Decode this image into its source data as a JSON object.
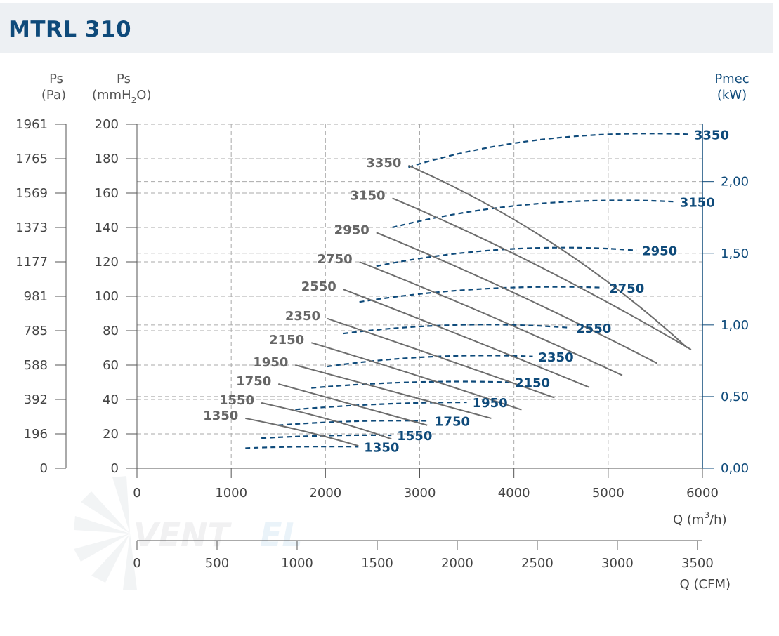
{
  "title": "MTRL 310",
  "axes": {
    "pa_label": "Ps",
    "pa_unit": "(Pa)",
    "mm_label": "Ps",
    "mm_unit_pre": "(mmH",
    "mm_unit_sub": "2",
    "mm_unit_post": "O)",
    "pmec_label": "Pmec",
    "pmec_unit": "(kW)",
    "q_m3h_label": "Q (m",
    "q_m3h_sup": "3",
    "q_m3h_post": "/h)",
    "q_cfm_label": "Q (CFM)"
  },
  "colors": {
    "pressure": "#6d6d6d",
    "power": "#0e4a7a",
    "grid": "#aaaaaa",
    "axis": "#0e4a7a"
  },
  "chart_data": {
    "type": "line",
    "title": "MTRL 310",
    "x_axis": {
      "label": "Q (m3/h)",
      "range": [
        0,
        6000
      ],
      "ticks": [
        "0",
        "1000",
        "2000",
        "3000",
        "4000",
        "5000",
        "6000"
      ]
    },
    "x2_axis": {
      "label": "Q (CFM)",
      "range": [
        0,
        3531
      ],
      "ticks": [
        "0",
        "500",
        "1000",
        "1500",
        "2000",
        "2500",
        "3000",
        "3500"
      ]
    },
    "y_axis_pa": {
      "label": "Ps (Pa)",
      "range": [
        0,
        1961
      ],
      "ticks": [
        "0",
        "196",
        "392",
        "588",
        "785",
        "981",
        "1177",
        "1373",
        "1569",
        "1765",
        "1961"
      ]
    },
    "y_axis_mm": {
      "label": "Ps (mmH2O)",
      "range": [
        0,
        200
      ],
      "ticks": [
        "0",
        "20",
        "40",
        "60",
        "80",
        "100",
        "120",
        "140",
        "160",
        "180",
        "200"
      ]
    },
    "y_axis_kw": {
      "label": "Pmec (kW)",
      "range": [
        0,
        2.4
      ],
      "ticks": [
        "0,00",
        "0,50",
        "1,00",
        "1,50",
        "2,00"
      ]
    },
    "grid": true,
    "pressure_series": [
      {
        "name": "1350",
        "points": [
          [
            1150,
            29
          ],
          [
            1800,
            22
          ],
          [
            2350,
            13
          ]
        ]
      },
      {
        "name": "1550",
        "points": [
          [
            1320,
            38
          ],
          [
            2080,
            29
          ],
          [
            2700,
            17
          ]
        ]
      },
      {
        "name": "1750",
        "points": [
          [
            1500,
            49
          ],
          [
            2350,
            36
          ],
          [
            3080,
            25
          ]
        ]
      },
      {
        "name": "1950",
        "points": [
          [
            1680,
            60
          ],
          [
            2620,
            46
          ],
          [
            3760,
            29
          ]
        ]
      },
      {
        "name": "2150",
        "points": [
          [
            1850,
            73
          ],
          [
            2880,
            56
          ],
          [
            4080,
            34
          ]
        ]
      },
      {
        "name": "2350",
        "points": [
          [
            2020,
            87
          ],
          [
            3150,
            66
          ],
          [
            4430,
            41
          ]
        ]
      },
      {
        "name": "2550",
        "points": [
          [
            2190,
            104
          ],
          [
            3420,
            78
          ],
          [
            4800,
            47
          ]
        ]
      },
      {
        "name": "2750",
        "points": [
          [
            2360,
            120
          ],
          [
            3700,
            91
          ],
          [
            5150,
            54
          ]
        ]
      },
      {
        "name": "2950",
        "points": [
          [
            2540,
            137
          ],
          [
            3970,
            105
          ],
          [
            5520,
            61
          ]
        ]
      },
      {
        "name": "3150",
        "points": [
          [
            2710,
            157
          ],
          [
            4230,
            122
          ],
          [
            5880,
            69
          ]
        ]
      },
      {
        "name": "3350",
        "points": [
          [
            2880,
            176
          ],
          [
            4500,
            137
          ],
          [
            5840,
            70
          ]
        ]
      }
    ],
    "power_series": [
      {
        "name": "1350",
        "points": [
          [
            1150,
            0.14
          ],
          [
            1700,
            0.155
          ],
          [
            2350,
            0.15
          ]
        ]
      },
      {
        "name": "1550",
        "points": [
          [
            1320,
            0.21
          ],
          [
            2000,
            0.235
          ],
          [
            2700,
            0.23
          ]
        ]
      },
      {
        "name": "1750",
        "points": [
          [
            1500,
            0.3
          ],
          [
            2300,
            0.34
          ],
          [
            3100,
            0.33
          ]
        ]
      },
      {
        "name": "1950",
        "points": [
          [
            1680,
            0.41
          ],
          [
            2600,
            0.46
          ],
          [
            3500,
            0.46
          ]
        ]
      },
      {
        "name": "2150",
        "points": [
          [
            1850,
            0.56
          ],
          [
            2900,
            0.62
          ],
          [
            3950,
            0.6
          ]
        ]
      },
      {
        "name": "2350",
        "points": [
          [
            2020,
            0.71
          ],
          [
            3100,
            0.81
          ],
          [
            4200,
            0.78
          ]
        ]
      },
      {
        "name": "2550",
        "points": [
          [
            2190,
            0.94
          ],
          [
            3400,
            1.04
          ],
          [
            4600,
            0.98
          ]
        ]
      },
      {
        "name": "2750",
        "points": [
          [
            2360,
            1.16
          ],
          [
            3600,
            1.29
          ],
          [
            4950,
            1.26
          ]
        ]
      },
      {
        "name": "2950",
        "points": [
          [
            2540,
            1.41
          ],
          [
            3900,
            1.59
          ],
          [
            5300,
            1.52
          ]
        ]
      },
      {
        "name": "3150",
        "points": [
          [
            2710,
            1.68
          ],
          [
            4100,
            1.91
          ],
          [
            5700,
            1.86
          ]
        ]
      },
      {
        "name": "3350",
        "points": [
          [
            2880,
            2.1
          ],
          [
            4200,
            2.37
          ],
          [
            5850,
            2.33
          ]
        ]
      }
    ]
  }
}
